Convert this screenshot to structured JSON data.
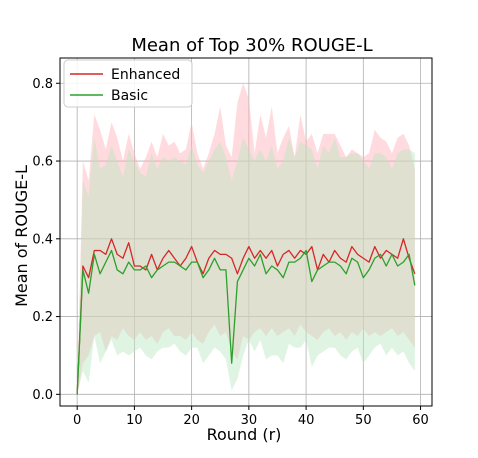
{
  "chart_data": {
    "type": "line",
    "title": "Mean of Top 30% ROUGE-L",
    "xlabel": "Round (r)",
    "ylabel": "Mean of ROUGE-L",
    "xlim": [
      -3,
      62
    ],
    "ylim": [
      -0.03,
      0.865
    ],
    "xticks": [
      0,
      10,
      20,
      30,
      40,
      50,
      60
    ],
    "yticks": [
      0.0,
      0.2,
      0.4,
      0.6,
      0.8
    ],
    "xtick_labels": [
      "0",
      "10",
      "20",
      "30",
      "40",
      "50",
      "60"
    ],
    "ytick_labels": [
      "0.0",
      "0.2",
      "0.4",
      "0.6",
      "0.8"
    ],
    "grid": true,
    "legend_position": "top-left",
    "x": [
      0,
      1,
      2,
      3,
      4,
      5,
      6,
      7,
      8,
      9,
      10,
      11,
      12,
      13,
      14,
      15,
      16,
      17,
      18,
      19,
      20,
      21,
      22,
      23,
      24,
      25,
      26,
      27,
      28,
      29,
      30,
      31,
      32,
      33,
      34,
      35,
      36,
      37,
      38,
      39,
      40,
      41,
      42,
      43,
      44,
      45,
      46,
      47,
      48,
      49,
      50,
      51,
      52,
      53,
      54,
      55,
      56,
      57,
      58,
      59
    ],
    "series": [
      {
        "name": "Enhanced",
        "color": "#d62728",
        "band_color": "#ffb0b8",
        "values": [
          0.0,
          0.33,
          0.3,
          0.37,
          0.37,
          0.36,
          0.4,
          0.36,
          0.35,
          0.39,
          0.33,
          0.33,
          0.32,
          0.36,
          0.32,
          0.35,
          0.37,
          0.35,
          0.33,
          0.35,
          0.38,
          0.34,
          0.31,
          0.35,
          0.37,
          0.36,
          0.36,
          0.35,
          0.31,
          0.35,
          0.38,
          0.35,
          0.37,
          0.35,
          0.37,
          0.33,
          0.36,
          0.37,
          0.35,
          0.37,
          0.36,
          0.38,
          0.32,
          0.36,
          0.34,
          0.37,
          0.35,
          0.34,
          0.38,
          0.36,
          0.35,
          0.34,
          0.38,
          0.35,
          0.37,
          0.36,
          0.35,
          0.4,
          0.35,
          0.31
        ],
        "upper": [
          0.0,
          0.6,
          0.55,
          0.72,
          0.68,
          0.63,
          0.7,
          0.66,
          0.6,
          0.67,
          0.62,
          0.58,
          0.61,
          0.65,
          0.61,
          0.67,
          0.64,
          0.65,
          0.62,
          0.63,
          0.7,
          0.62,
          0.58,
          0.62,
          0.67,
          0.74,
          0.64,
          0.61,
          0.75,
          0.8,
          0.76,
          0.62,
          0.72,
          0.66,
          0.74,
          0.62,
          0.66,
          0.69,
          0.61,
          0.72,
          0.65,
          0.67,
          0.62,
          0.67,
          0.67,
          0.67,
          0.64,
          0.61,
          0.63,
          0.62,
          0.61,
          0.62,
          0.68,
          0.66,
          0.65,
          0.62,
          0.66,
          0.67,
          0.64,
          0.58
        ],
        "lower": [
          0.0,
          0.08,
          0.1,
          0.15,
          0.16,
          0.11,
          0.15,
          0.14,
          0.17,
          0.15,
          0.14,
          0.16,
          0.14,
          0.15,
          0.13,
          0.16,
          0.17,
          0.15,
          0.15,
          0.14,
          0.16,
          0.14,
          0.13,
          0.16,
          0.18,
          0.15,
          0.16,
          0.11,
          0.09,
          0.15,
          0.14,
          0.16,
          0.17,
          0.15,
          0.17,
          0.15,
          0.16,
          0.17,
          0.15,
          0.18,
          0.16,
          0.15,
          0.14,
          0.16,
          0.17,
          0.15,
          0.16,
          0.14,
          0.16,
          0.15,
          0.17,
          0.15,
          0.16,
          0.15,
          0.16,
          0.17,
          0.15,
          0.16,
          0.14,
          0.12
        ]
      },
      {
        "name": "Basic",
        "color": "#2ca02c",
        "band_color": "#b8e6be",
        "values": [
          0.0,
          0.32,
          0.26,
          0.36,
          0.31,
          0.34,
          0.37,
          0.32,
          0.31,
          0.34,
          0.32,
          0.32,
          0.33,
          0.3,
          0.32,
          0.33,
          0.34,
          0.34,
          0.33,
          0.32,
          0.34,
          0.34,
          0.3,
          0.32,
          0.35,
          0.32,
          0.32,
          0.08,
          0.29,
          0.32,
          0.35,
          0.33,
          0.36,
          0.31,
          0.33,
          0.32,
          0.3,
          0.34,
          0.34,
          0.35,
          0.37,
          0.29,
          0.32,
          0.33,
          0.34,
          0.34,
          0.33,
          0.31,
          0.35,
          0.34,
          0.3,
          0.32,
          0.35,
          0.36,
          0.33,
          0.36,
          0.33,
          0.34,
          0.36,
          0.28
        ],
        "upper": [
          0.0,
          0.55,
          0.51,
          0.66,
          0.58,
          0.59,
          0.64,
          0.6,
          0.56,
          0.63,
          0.6,
          0.57,
          0.56,
          0.62,
          0.58,
          0.61,
          0.6,
          0.61,
          0.6,
          0.59,
          0.64,
          0.59,
          0.57,
          0.6,
          0.63,
          0.65,
          0.61,
          0.55,
          0.6,
          0.66,
          0.63,
          0.6,
          0.63,
          0.6,
          0.64,
          0.58,
          0.6,
          0.66,
          0.61,
          0.65,
          0.64,
          0.63,
          0.58,
          0.64,
          0.62,
          0.66,
          0.61,
          0.61,
          0.62,
          0.62,
          0.6,
          0.58,
          0.62,
          0.62,
          0.61,
          0.58,
          0.62,
          0.63,
          0.63,
          0.62
        ],
        "lower": [
          0.0,
          0.06,
          0.03,
          0.15,
          0.08,
          0.11,
          0.14,
          0.1,
          0.11,
          0.1,
          0.11,
          0.12,
          0.1,
          0.09,
          0.11,
          0.12,
          0.12,
          0.13,
          0.11,
          0.1,
          0.12,
          0.12,
          0.08,
          0.1,
          0.12,
          0.11,
          0.09,
          0.01,
          0.04,
          0.1,
          0.14,
          0.11,
          0.14,
          0.09,
          0.1,
          0.1,
          0.08,
          0.13,
          0.12,
          0.12,
          0.14,
          0.07,
          0.1,
          0.11,
          0.12,
          0.12,
          0.1,
          0.09,
          0.11,
          0.12,
          0.08,
          0.1,
          0.12,
          0.13,
          0.1,
          0.12,
          0.1,
          0.11,
          0.08,
          0.06
        ]
      }
    ]
  }
}
